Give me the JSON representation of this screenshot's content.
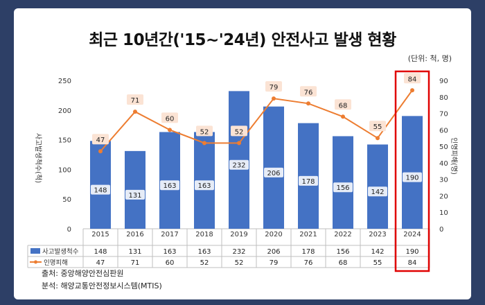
{
  "title": "최근 10년간('15~'24년) 안전사고 발생 현황",
  "unit_note": "(단위: 척, 명)",
  "source_lines": [
    "출처: 중앙해양안전심판원",
    "분석: 해양교통안전정보시스템(MTIS)"
  ],
  "colors": {
    "bar": "#4472c4",
    "line": "#ed7d31",
    "highlight": "#e00000",
    "label_bg": "#fbe3d4"
  },
  "chart_data": {
    "type": "bar",
    "categories": [
      "2015",
      "2016",
      "2017",
      "2018",
      "2019",
      "2020",
      "2021",
      "2022",
      "2023",
      "2024"
    ],
    "series": [
      {
        "name": "사고발생척수",
        "type": "bar",
        "axis": "left",
        "values": [
          148,
          131,
          163,
          163,
          232,
          206,
          178,
          156,
          142,
          190
        ]
      },
      {
        "name": "인명피해",
        "type": "line",
        "axis": "right",
        "values": [
          47,
          71,
          60,
          52,
          52,
          79,
          76,
          68,
          55,
          84
        ]
      }
    ],
    "ylabel": "사고발생척수(척)",
    "y2label": "인명피해(명)",
    "ylim": [
      0,
      250
    ],
    "y2lim": [
      0,
      90
    ],
    "yticks": [
      0,
      50,
      100,
      150,
      200,
      250
    ],
    "y2ticks": [
      0,
      10,
      20,
      30,
      40,
      50,
      60,
      70,
      80,
      90
    ],
    "highlight_category": "2024",
    "grid": false,
    "legend": "data-table"
  }
}
